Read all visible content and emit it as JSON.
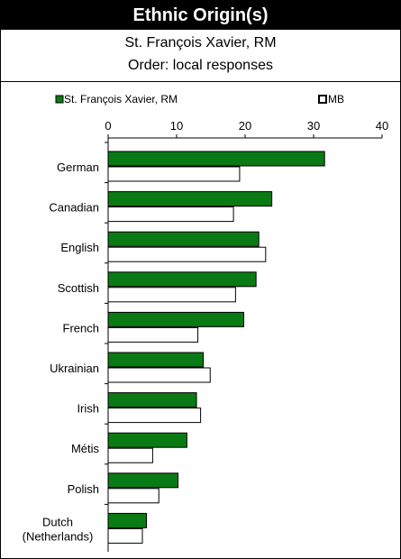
{
  "header": {
    "title": "Ethnic Origin(s)",
    "subtitle": "St. François Xavier, RM",
    "order_note": "Order: local responses"
  },
  "colors": {
    "local": "#0a7a14",
    "mb": "#ffffff",
    "stroke": "#000000"
  },
  "chart_data": {
    "type": "bar",
    "orientation": "horizontal",
    "categories": [
      "German",
      "Canadian",
      "English",
      "Scottish",
      "French",
      "Ukrainian",
      "Irish",
      "Métis",
      "Polish",
      "Dutch (Netherlands)"
    ],
    "category_lines": [
      [
        "German"
      ],
      [
        "Canadian"
      ],
      [
        "English"
      ],
      [
        "Scottish"
      ],
      [
        "French"
      ],
      [
        "Ukrainian"
      ],
      [
        "Irish"
      ],
      [
        "Métis"
      ],
      [
        "Polish"
      ],
      [
        "Dutch",
        "(Netherlands)"
      ]
    ],
    "series": [
      {
        "name": "St. François Xavier, RM",
        "values": [
          31.6,
          23.9,
          22.0,
          21.6,
          19.8,
          13.9,
          12.9,
          11.5,
          10.2,
          5.6
        ]
      },
      {
        "name": "MB",
        "values": [
          19.2,
          18.3,
          23.0,
          18.6,
          13.1,
          14.9,
          13.5,
          6.5,
          7.4,
          5.0
        ]
      }
    ],
    "xlim": [
      0,
      40
    ],
    "ticks": [
      0,
      10,
      20,
      30,
      40
    ],
    "legend_position": "top"
  }
}
